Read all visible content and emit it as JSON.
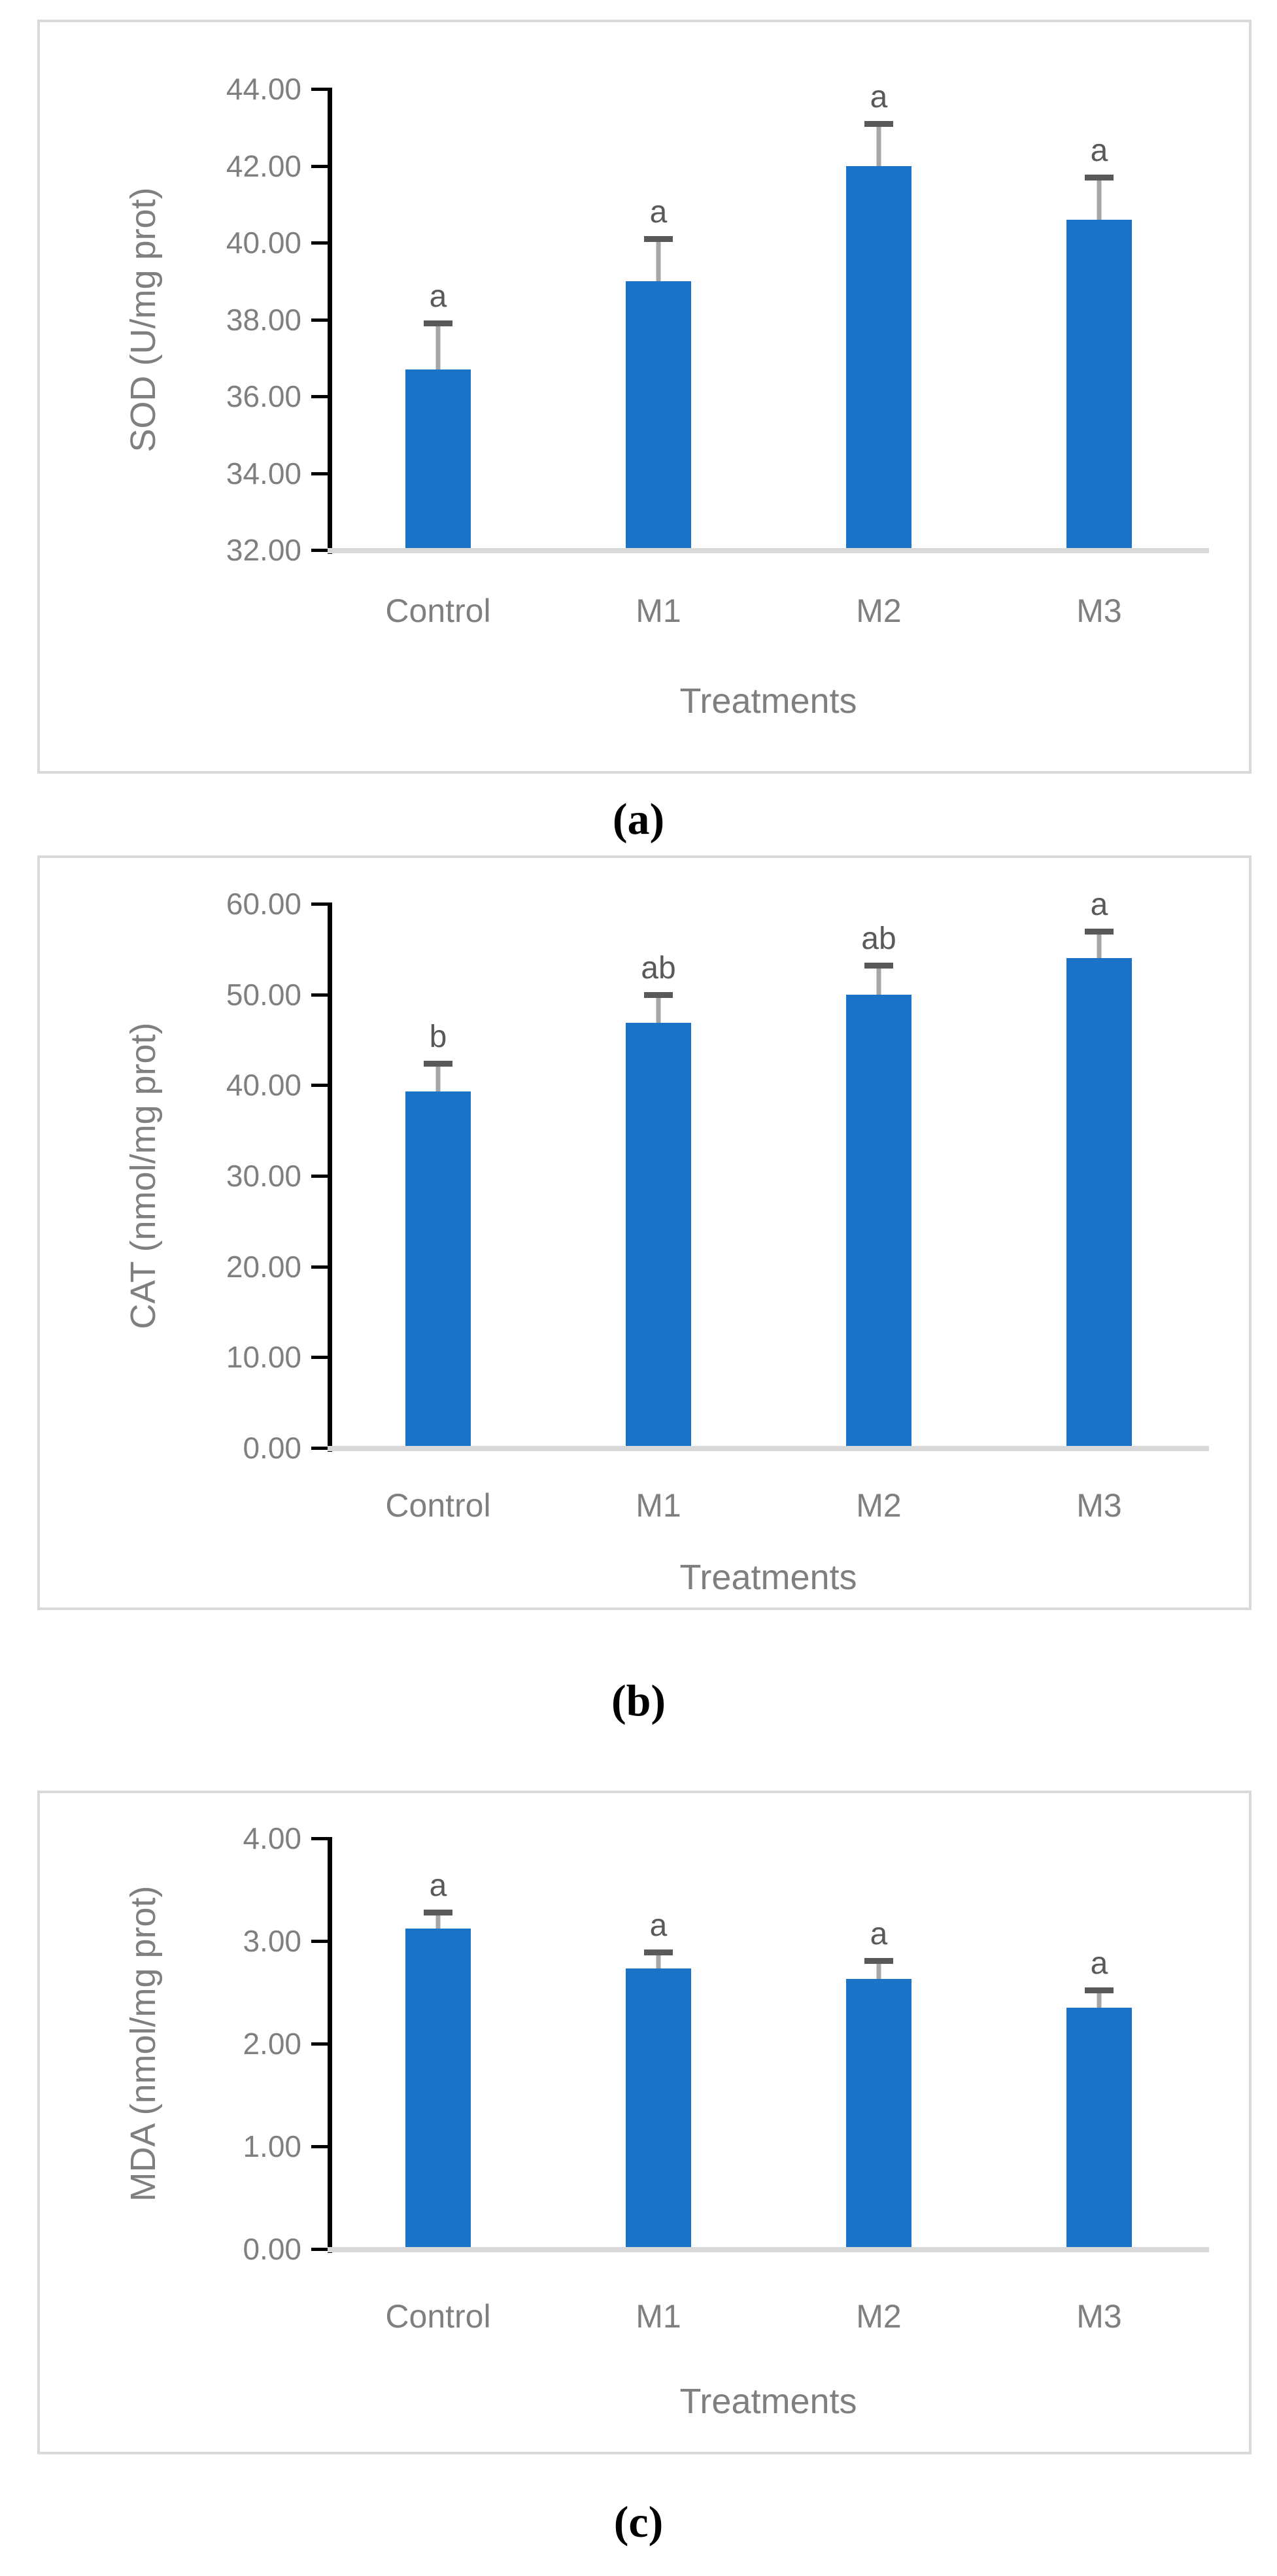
{
  "styles": {
    "bar_color": "#1b73c8",
    "error_line_color": "#a6a6a6",
    "error_cap_color": "#595959",
    "letter_color": "#595959",
    "tick_label_color": "#7f7f7f",
    "category_label_color": "#7f7f7f",
    "axis_title_color": "#7f7f7f",
    "axis_line_color": "#000000",
    "baseline_color": "#d9d9d9",
    "panel_border_color": "#d9d9d9",
    "caption_color": "#000000"
  },
  "chart_data": [
    {
      "id": "sod",
      "type": "bar",
      "title": "",
      "ylabel": "SOD (U/mg prot)",
      "xlabel": "Treatments",
      "categories": [
        "Control",
        "M1",
        "M2",
        "M3"
      ],
      "values": [
        36.7,
        39.0,
        42.0,
        40.6
      ],
      "error_top": [
        37.9,
        40.1,
        43.1,
        41.7
      ],
      "sig_letters": [
        "a",
        "a",
        "a",
        "a"
      ],
      "ylim": [
        32,
        44
      ],
      "ytick_step": 2,
      "ytick_labels": [
        "32.00",
        "34.00",
        "36.00",
        "38.00",
        "40.00",
        "42.00",
        "44.00"
      ],
      "grid": false,
      "legend": "none",
      "caption": "(a)"
    },
    {
      "id": "cat",
      "type": "bar",
      "title": "",
      "ylabel": "CAT (nmol/mg prot)",
      "xlabel": "Treatments",
      "categories": [
        "Control",
        "M1",
        "M2",
        "M3"
      ],
      "values": [
        39.3,
        46.9,
        50.0,
        54.0
      ],
      "error_top": [
        42.4,
        50.0,
        53.2,
        57.0
      ],
      "sig_letters": [
        "b",
        "ab",
        "ab",
        "a"
      ],
      "ylim": [
        0,
        60
      ],
      "ytick_step": 10,
      "ytick_labels": [
        "0.00",
        "10.00",
        "20.00",
        "30.00",
        "40.00",
        "50.00",
        "60.00"
      ],
      "grid": false,
      "legend": "none",
      "caption": "(b)"
    },
    {
      "id": "mda",
      "type": "bar",
      "title": "",
      "ylabel": "MDA (nmol/mg prot)",
      "xlabel": "Treatments",
      "categories": [
        "Control",
        "M1",
        "M2",
        "M3"
      ],
      "values": [
        3.12,
        2.73,
        2.63,
        2.35
      ],
      "error_top": [
        3.28,
        2.89,
        2.81,
        2.52
      ],
      "sig_letters": [
        "a",
        "a",
        "a",
        "a"
      ],
      "ylim": [
        0,
        4
      ],
      "ytick_step": 1,
      "ytick_labels": [
        "0.00",
        "1.00",
        "2.00",
        "3.00",
        "4.00"
      ],
      "grid": false,
      "legend": "none",
      "caption": "(c)"
    }
  ]
}
